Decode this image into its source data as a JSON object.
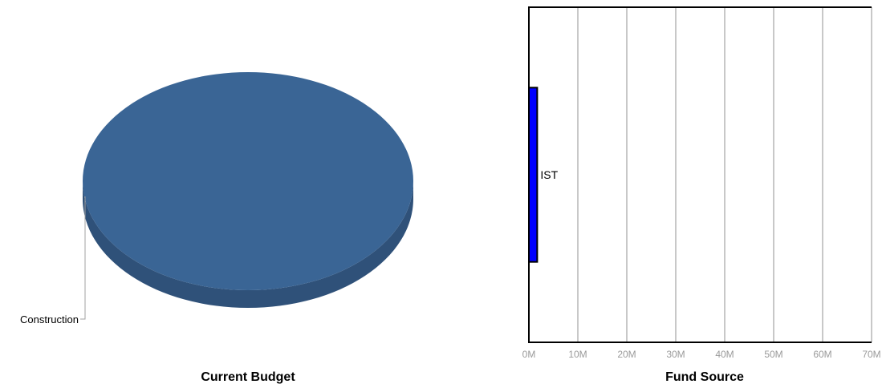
{
  "chart_data": [
    {
      "type": "pie",
      "title": "Current Budget",
      "slices": [
        {
          "label": "Construction",
          "value": 100,
          "color": "#3a6595",
          "side_color": "#2f5179"
        }
      ],
      "style": "3d"
    },
    {
      "type": "bar",
      "orientation": "horizontal",
      "title": "Fund Source",
      "categories": [
        "IST"
      ],
      "values": [
        1.7
      ],
      "xlim": [
        0,
        70
      ],
      "x_ticks": [
        "0M",
        "10M",
        "20M",
        "30M",
        "40M",
        "50M",
        "60M",
        "70M"
      ],
      "grid": true,
      "bar_color": "#0000ff"
    }
  ]
}
